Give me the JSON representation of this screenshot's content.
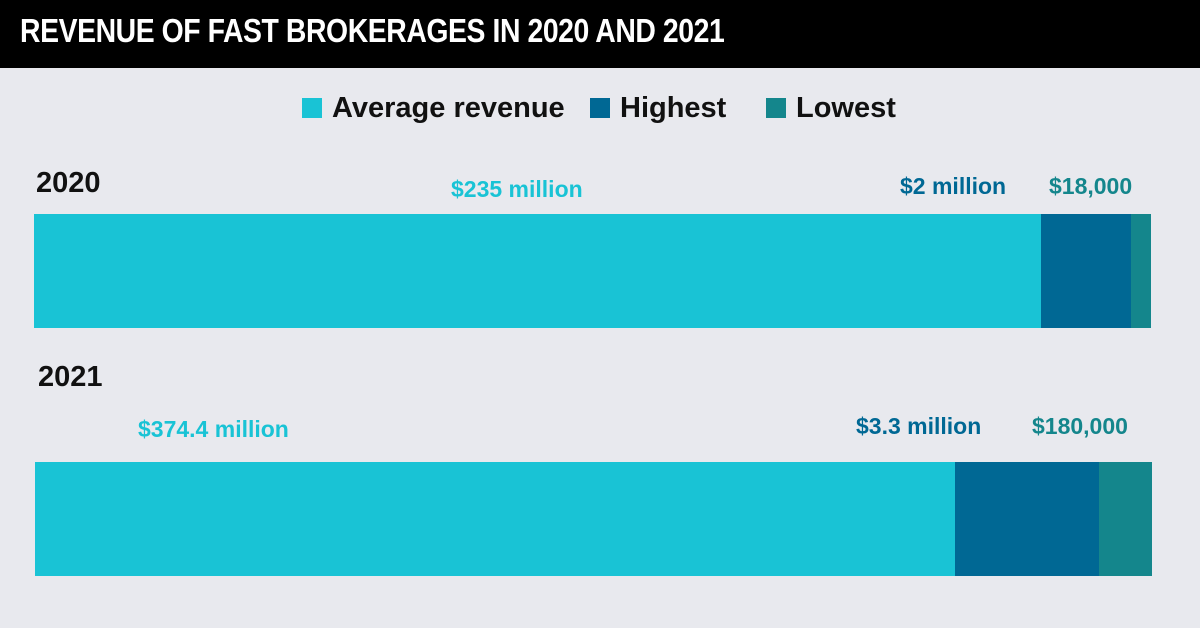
{
  "header": {
    "title": "REVENUE OF FAST BROKERAGES IN 2020 AND 2021"
  },
  "colors": {
    "average": "#19c3d5",
    "highest": "#006894",
    "lowest": "#14868c"
  },
  "legend": [
    {
      "label": "Average revenue",
      "color": "#19c3d5"
    },
    {
      "label": "Highest",
      "color": "#006894"
    },
    {
      "label": "Lowest",
      "color": "#14868c"
    }
  ],
  "chart_data": {
    "type": "bar",
    "orientation": "horizontal-stacked",
    "categories": [
      "2020",
      "2021"
    ],
    "legend_position": "top-center",
    "series": [
      {
        "name": "Average revenue",
        "labels": [
          "$235 million",
          "$374.4 million"
        ]
      },
      {
        "name": "Highest",
        "labels": [
          "$2 million",
          "$3.3 million"
        ]
      },
      {
        "name": "Lowest",
        "labels": [
          "$18,000",
          "$180,000"
        ]
      }
    ]
  }
}
